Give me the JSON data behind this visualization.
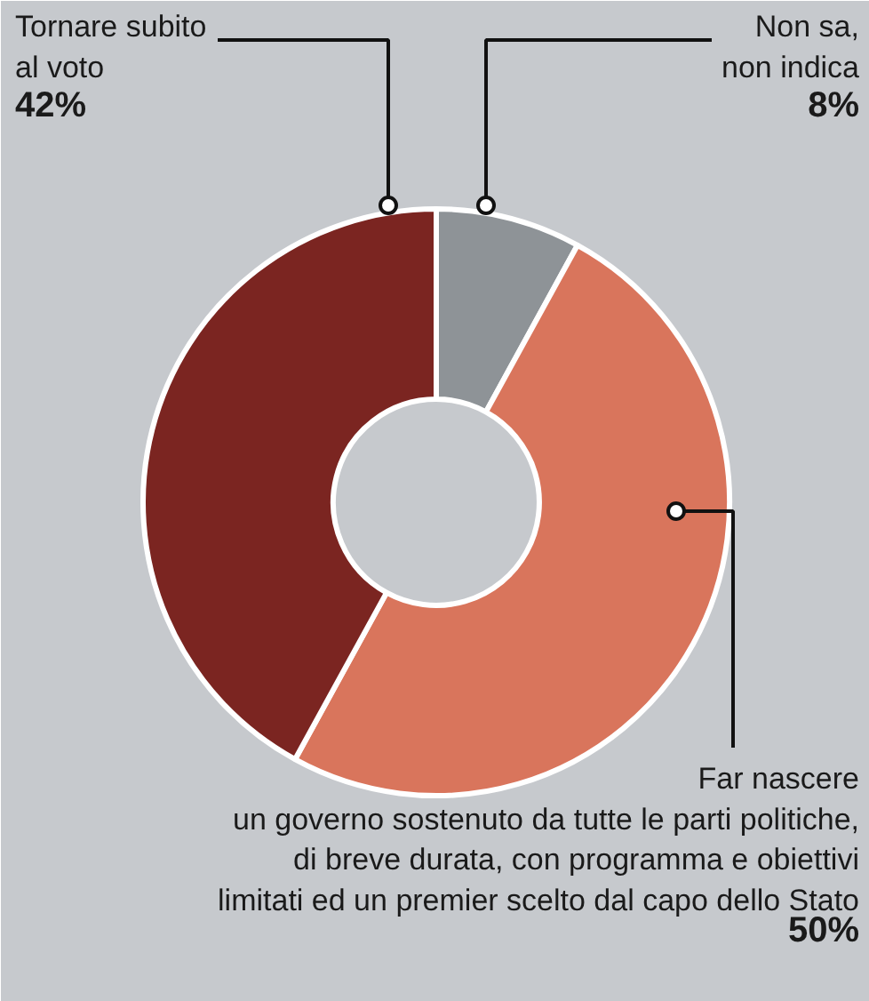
{
  "chart_data": {
    "type": "donut",
    "categories": [
      "Non sa,\nnon indica",
      "Far nascere\nun governo sostenuto da tutte le parti politiche,\ndi breve durata, con programma e obiettivi\nlimitati ed un premier scelto dal capo dello Stato",
      "Tornare subito\nal voto"
    ],
    "values": [
      8,
      50,
      42
    ],
    "colors": [
      "#8e9397",
      "#d9755c",
      "#7b2521"
    ],
    "value_labels": [
      "8%",
      "50%",
      "42%"
    ]
  }
}
